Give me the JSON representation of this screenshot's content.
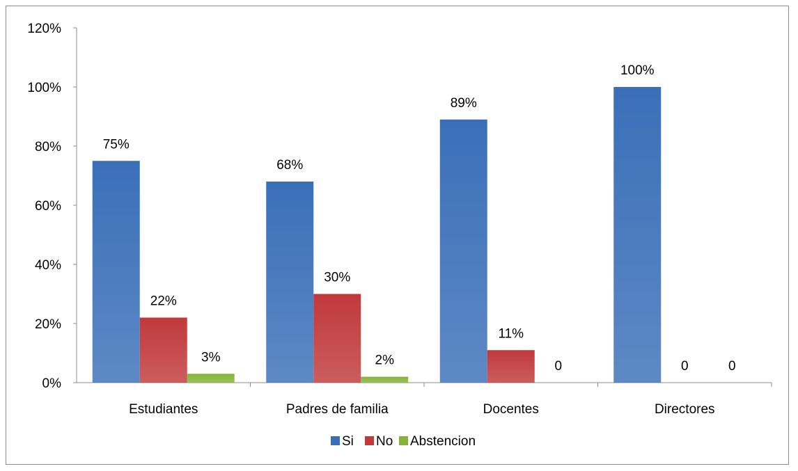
{
  "chart_data": {
    "type": "bar",
    "categories": [
      "Estudiantes",
      "Padres de familia",
      "Docentes",
      "Directores"
    ],
    "series": [
      {
        "name": "Si",
        "values": [
          75,
          68,
          89,
          100
        ],
        "labels": [
          "75%",
          "68%",
          "89%",
          "100%"
        ],
        "color": "#3a6fb8"
      },
      {
        "name": "No",
        "values": [
          22,
          30,
          11,
          0
        ],
        "labels": [
          "22%",
          "30%",
          "11%",
          "0"
        ],
        "color": "#c0393b"
      },
      {
        "name": "Abstencion",
        "values": [
          3,
          2,
          0,
          0
        ],
        "labels": [
          "3%",
          "2%",
          "0",
          "0"
        ],
        "color": "#86b33a"
      }
    ],
    "yticks": [
      "0%",
      "20%",
      "40%",
      "60%",
      "80%",
      "100%",
      "120%"
    ],
    "ylim": [
      0,
      120
    ],
    "title": "",
    "xlabel": "",
    "ylabel": "",
    "grid": false,
    "legend_position": "bottom"
  }
}
